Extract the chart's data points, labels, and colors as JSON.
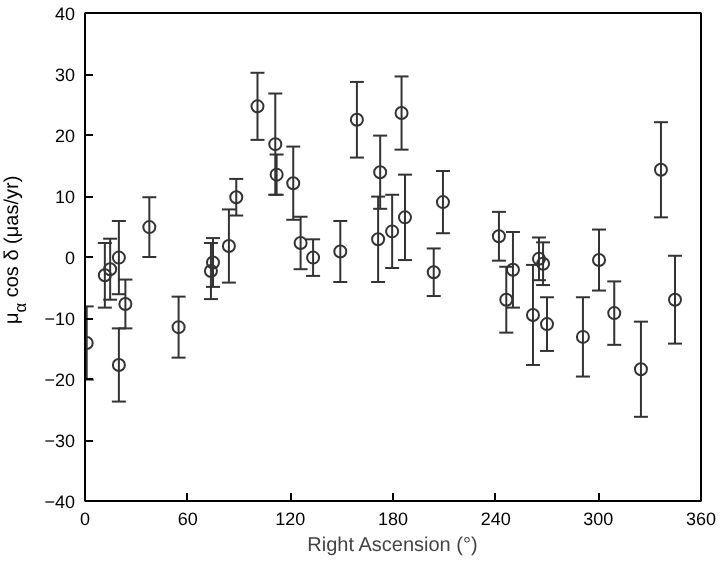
{
  "chart_data": {
    "type": "scatter",
    "xlabel": "Right Ascension (°)",
    "ylabel": "μ$_{α}$ cos δ (μas/yr)",
    "x": [
      1,
      11.6,
      14.7,
      19.8,
      19.8,
      23.6,
      37.6,
      54.7,
      73.6,
      74.8,
      84.1,
      88.4,
      100.8,
      111.2,
      112,
      121.7,
      126,
      133.3,
      149.2,
      158.9,
      171.3,
      172.5,
      179.5,
      185,
      187,
      203.8,
      209.2,
      241.9,
      246.2,
      250.1,
      261.8,
      265.3,
      267.7,
      270,
      291,
      300.4,
      309.3,
      324.9,
      336.6,
      344.8
    ],
    "values": [
      -14.1,
      -3.0,
      -2.0,
      -0.1,
      -17.7,
      -7.7,
      4.9,
      -11.5,
      -2.3,
      -0.9,
      1.8,
      9.8,
      24.7,
      18.5,
      13.5,
      12.1,
      2.3,
      -0.1,
      0.9,
      22.5,
      2.9,
      13.9,
      4.2,
      23.6,
      6.5,
      -2.5,
      9.0,
      3.4,
      -7.0,
      -2.1,
      -9.5,
      -0.3,
      -1.1,
      -11,
      -13.1,
      -0.5,
      -9.2,
      -18.4,
      14.3,
      -7.0
    ],
    "errors": [
      6,
      5.3,
      5,
      6,
      6,
      4,
      4.9,
      5,
      4.6,
      4,
      6,
      3,
      5.5,
      8.3,
      3.3,
      6,
      4.3,
      3,
      5,
      6.2,
      7,
      6,
      6,
      6,
      7,
      3.9,
      5.1,
      4,
      5.4,
      6.2,
      8.2,
      3.5,
      3.5,
      4.4,
      6.5,
      5,
      5.2,
      7.8,
      7.8,
      7.2
    ],
    "color": "#333333",
    "marker": "circle",
    "grid": false,
    "xlim": [
      0,
      360
    ],
    "xticks": [
      0,
      60,
      120,
      180,
      240,
      300,
      360
    ],
    "ylim": [
      -40,
      40
    ],
    "yticks": [
      -40,
      -30,
      -20,
      -10,
      0,
      10,
      20,
      30,
      40
    ]
  }
}
